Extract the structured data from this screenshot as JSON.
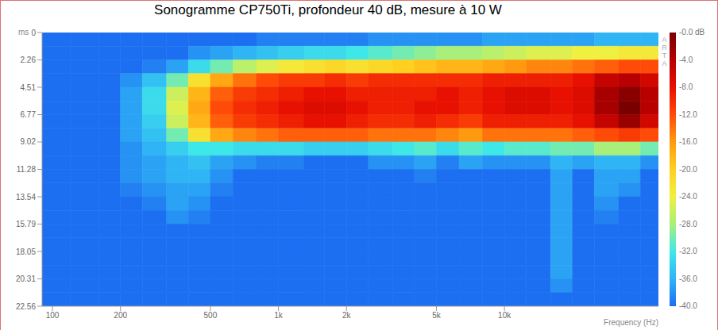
{
  "chart_data": {
    "type": "heatmap",
    "title": "Sonogramme CP750Ti, profondeur 40 dB, mesure à 10 W",
    "x_label": "Frequency (Hz)",
    "y_label": "ms",
    "watermark": "ARTA",
    "log": "x",
    "grid": false,
    "xlim": [
      90,
      48000
    ],
    "xticks": [
      100,
      200,
      500,
      {
        "value": 1000,
        "label": "1k"
      },
      {
        "value": 2000,
        "label": "2k"
      },
      {
        "value": 5000,
        "label": "5k"
      },
      {
        "value": 10000,
        "label": "10k"
      }
    ],
    "ylim": [
      0,
      22.56
    ],
    "yticks": [
      0,
      2.26,
      4.51,
      6.77,
      9.02,
      11.28,
      13.54,
      15.79,
      18.05,
      20.31,
      22.56
    ],
    "freq_edges": [
      90,
      120,
      160,
      200,
      250,
      320,
      400,
      500,
      630,
      800,
      1000,
      1300,
      1600,
      2000,
      2500,
      3200,
      4000,
      5000,
      6300,
      8000,
      10000,
      12500,
      16000,
      20000,
      25000,
      32000,
      40000,
      48000
    ],
    "time_edges": [
      0,
      1.13,
      2.26,
      3.38,
      4.51,
      5.64,
      6.77,
      7.9,
      9.02,
      10.15,
      11.28,
      12.41,
      13.54,
      14.66,
      15.79,
      16.92,
      18.05,
      19.18,
      20.31,
      21.44,
      22.56
    ],
    "cells": [
      [
        -40,
        -40,
        -40,
        -40,
        -40,
        -40,
        -40,
        -40,
        -40,
        -40,
        -40,
        -40,
        -40,
        -40,
        -40,
        -40,
        -40,
        -40,
        -40,
        -40
      ],
      [
        -40,
        -40,
        -40,
        -40,
        -40,
        -40,
        -40,
        -40,
        -40,
        -40,
        -40,
        -40,
        -40,
        -40,
        -40,
        -40,
        -40,
        -40,
        -40,
        -40
      ],
      [
        -40,
        -40,
        -40,
        -40,
        -40,
        -40,
        -40,
        -40,
        -40,
        -40,
        -40,
        -40,
        -40,
        -40,
        -40,
        -40,
        -40,
        -40,
        -40,
        -40
      ],
      [
        -40,
        -40,
        -40,
        -38,
        -37,
        -37,
        -37,
        -37,
        -38,
        -38,
        -38,
        -39,
        -40,
        -40,
        -40,
        -40,
        -40,
        -40,
        -40,
        -40
      ],
      [
        -40,
        -40,
        -39,
        -35,
        -33,
        -33,
        -34,
        -35,
        -36,
        -37,
        -37,
        -38,
        -39,
        -40,
        -40,
        -40,
        -40,
        -40,
        -40,
        -40
      ],
      [
        -40,
        -40,
        -37,
        -30,
        -26,
        -25,
        -26,
        -30,
        -34,
        -36,
        -36,
        -37,
        -37,
        -38,
        -40,
        -40,
        -40,
        -40,
        -40,
        -40
      ],
      [
        -40,
        -38,
        -33,
        -22,
        -18,
        -17,
        -18,
        -22,
        -32,
        -35,
        -36,
        -37,
        -38,
        -39,
        -40,
        -40,
        -40,
        -40,
        -40,
        -40
      ],
      [
        -40,
        -37,
        -30,
        -17,
        -13,
        -12,
        -13,
        -17,
        -32,
        -37,
        -38,
        -39,
        -40,
        -40,
        -40,
        -40,
        -40,
        -40,
        -40,
        -40
      ],
      [
        -40,
        -36,
        -27,
        -14,
        -11,
        -10,
        -11,
        -15,
        -33,
        -38,
        -40,
        -40,
        -40,
        -40,
        -40,
        -40,
        -40,
        -40,
        -40,
        -40
      ],
      [
        -39,
        -35,
        -25,
        -12,
        -10,
        -9,
        -10,
        -14,
        -33,
        -39,
        -40,
        -40,
        -40,
        -40,
        -40,
        -40,
        -40,
        -40,
        -40,
        -40
      ],
      [
        -39,
        -34,
        -23,
        -11,
        -9,
        -8,
        -9,
        -13,
        -33,
        -39,
        -40,
        -40,
        -40,
        -40,
        -40,
        -40,
        -40,
        -40,
        -40,
        -40
      ],
      [
        -39,
        -33,
        -22,
        -11,
        -8,
        -7,
        -8,
        -13,
        -34,
        -40,
        -40,
        -40,
        -40,
        -40,
        -40,
        -40,
        -40,
        -40,
        -40,
        -40
      ],
      [
        -39,
        -33,
        -21,
        -10,
        -8,
        -7,
        -8,
        -13,
        -34,
        -40,
        -40,
        -40,
        -40,
        -40,
        -40,
        -40,
        -40,
        -40,
        -40,
        -40
      ],
      [
        -39,
        -32,
        -22,
        -11,
        -9,
        -8,
        -9,
        -13,
        -34,
        -40,
        -40,
        -40,
        -40,
        -40,
        -40,
        -40,
        -40,
        -40,
        -40,
        -40
      ],
      [
        -38,
        -31,
        -21,
        -10,
        -9,
        -9,
        -10,
        -14,
        -33,
        -38,
        -40,
        -40,
        -40,
        -40,
        -40,
        -40,
        -40,
        -40,
        -40,
        -40
      ],
      [
        -38,
        -30,
        -20,
        -10,
        -9,
        -9,
        -10,
        -14,
        -32,
        -38,
        -40,
        -40,
        -40,
        -40,
        -40,
        -40,
        -40,
        -40,
        -40,
        -40
      ],
      [
        -38,
        -29,
        -19,
        -10,
        -9,
        -8,
        -9,
        -14,
        -31,
        -37,
        -39,
        -40,
        -40,
        -40,
        -40,
        -40,
        -40,
        -40,
        -40,
        -40
      ],
      [
        -38,
        -28,
        -18,
        -10,
        -8,
        -8,
        -10,
        -15,
        -33,
        -39,
        -40,
        -40,
        -40,
        -40,
        -40,
        -40,
        -40,
        -40,
        -40,
        -40
      ],
      [
        -38,
        -28,
        -18,
        -10,
        -9,
        -9,
        -11,
        -16,
        -31,
        -37,
        -40,
        -40,
        -40,
        -40,
        -40,
        -40,
        -40,
        -40,
        -40,
        -40
      ],
      [
        -37,
        -27,
        -17,
        -9,
        -8,
        -8,
        -9,
        -14,
        -32,
        -38,
        -40,
        -40,
        -40,
        -40,
        -40,
        -40,
        -40,
        -40,
        -40,
        -40
      ],
      [
        -37,
        -26,
        -16,
        -9,
        -7,
        -7,
        -9,
        -14,
        -31,
        -38,
        -40,
        -40,
        -40,
        -40,
        -40,
        -40,
        -40,
        -40,
        -40,
        -40
      ],
      [
        -37,
        -25,
        -15,
        -9,
        -7,
        -7,
        -9,
        -14,
        -31,
        -38,
        -40,
        -40,
        -40,
        -40,
        -40,
        -40,
        -40,
        -40,
        -40,
        -40
      ],
      [
        -37,
        -25,
        -15,
        -9,
        -8,
        -8,
        -9,
        -14,
        -30,
        -36,
        -37,
        -37,
        -37,
        -37,
        -37,
        -37,
        -37,
        -37,
        -38,
        -40
      ],
      [
        -37,
        -24,
        -14,
        -8,
        -7,
        -7,
        -8,
        -13,
        -30,
        -37,
        -40,
        -40,
        -40,
        -40,
        -40,
        -40,
        -40,
        -40,
        -40,
        -40
      ],
      [
        -36,
        -24,
        -13,
        -5,
        -3,
        -3,
        -5,
        -12,
        -28,
        -36,
        -37,
        -37,
        -38,
        -39,
        -40,
        -40,
        -40,
        -40,
        -40,
        -40
      ],
      [
        -36,
        -23,
        -12,
        -4,
        -1,
        0,
        -2,
        -11,
        -28,
        -36,
        -37,
        -38,
        -40,
        -40,
        -40,
        -40,
        -40,
        -40,
        -40,
        -40
      ],
      [
        -36,
        -23,
        -12,
        -6,
        -4,
        -4,
        -6,
        -12,
        -30,
        -38,
        -40,
        -40,
        -40,
        -40,
        -40,
        -40,
        -40,
        -40,
        -40,
        -40
      ]
    ],
    "colorbar": {
      "range": [
        -40,
        0
      ],
      "ticks": [
        {
          "value": 0,
          "label": "-0.0 dB"
        },
        {
          "value": -4,
          "label": "-4.0"
        },
        {
          "value": -8,
          "label": "-8.0"
        },
        {
          "value": -12,
          "label": "-12.0"
        },
        {
          "value": -16,
          "label": "-16.0"
        },
        {
          "value": -20,
          "label": "-20.0"
        },
        {
          "value": -24,
          "label": "-24.0"
        },
        {
          "value": -28,
          "label": "-28.0"
        },
        {
          "value": -32,
          "label": "-32.0"
        },
        {
          "value": -36,
          "label": "-36.0"
        },
        {
          "value": -40,
          "label": "-40.0"
        }
      ]
    }
  }
}
